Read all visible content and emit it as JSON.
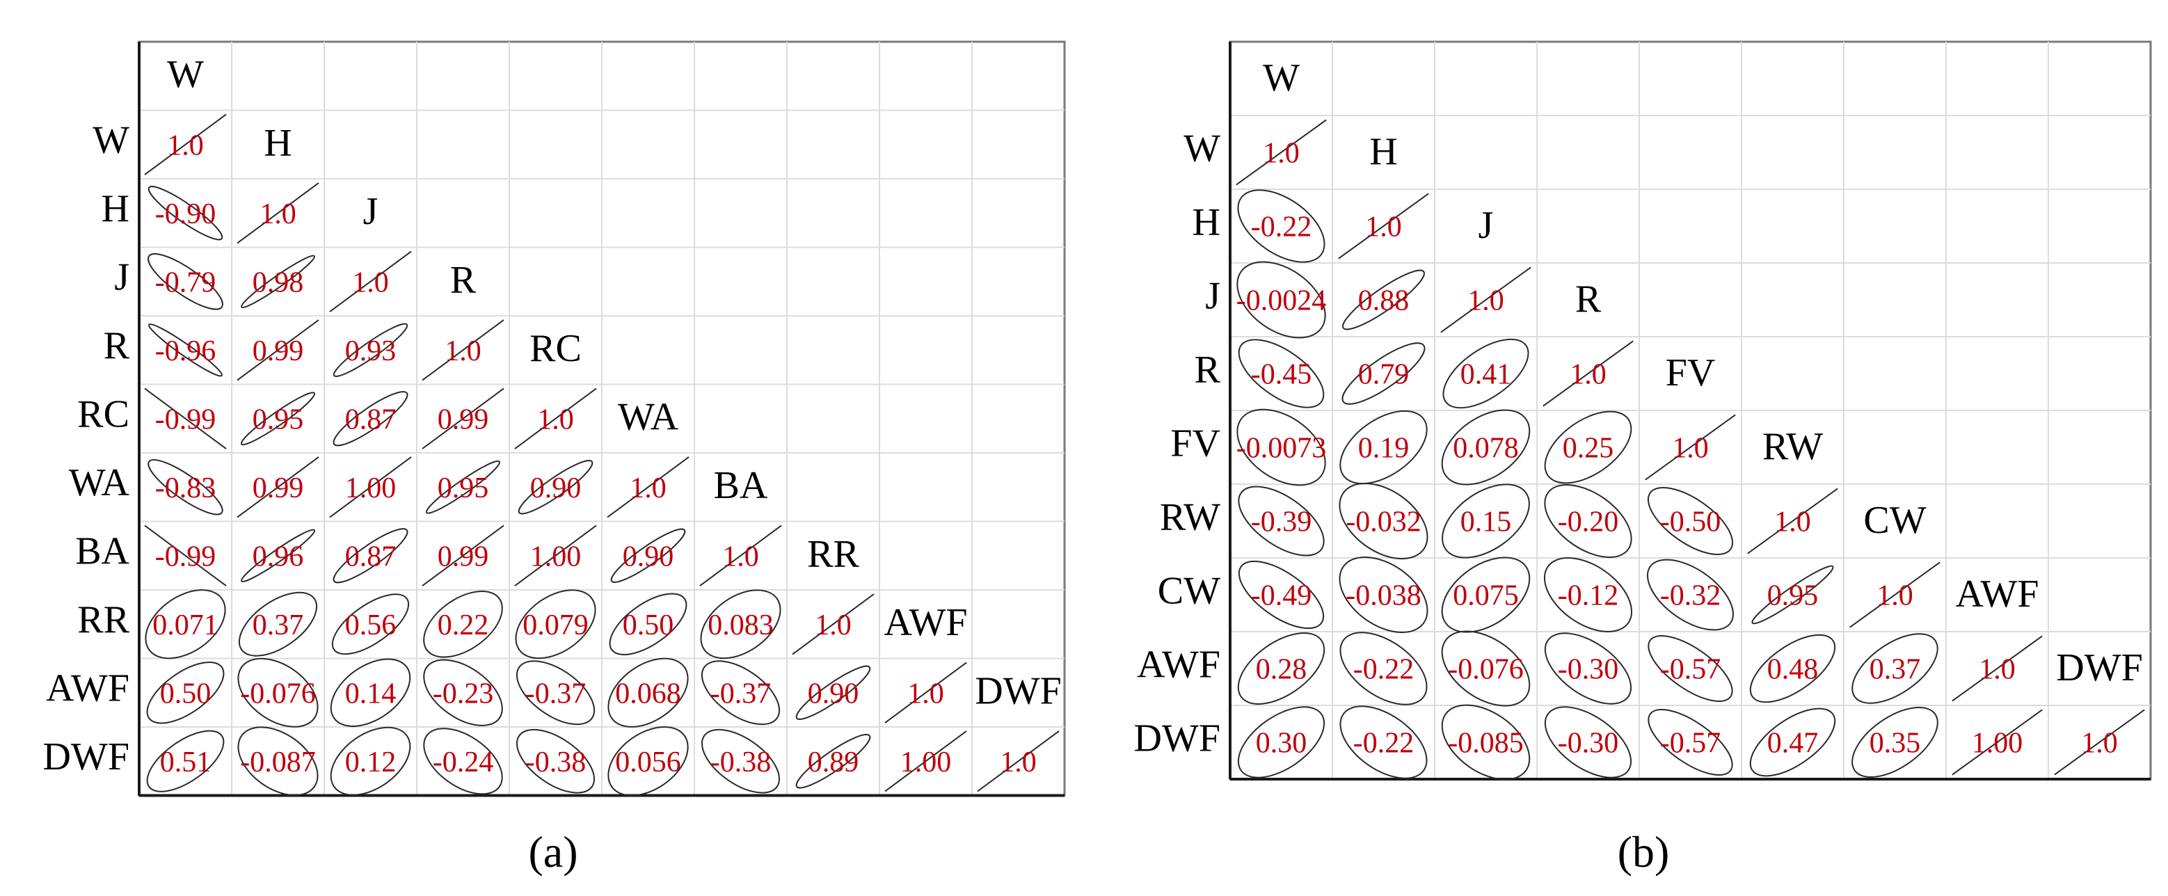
{
  "chart_data": [
    {
      "type": "heatmap",
      "title": "",
      "panel_label": "(a)",
      "variables": [
        "W",
        "H",
        "J",
        "R",
        "RC",
        "WA",
        "BA",
        "RR",
        "AWF",
        "DWF"
      ],
      "lower_triangle_values": [
        [
          "1.0"
        ],
        [
          "-0.90",
          "1.0"
        ],
        [
          "-0.79",
          "0.98",
          "1.0"
        ],
        [
          "-0.96",
          "0.99",
          "0.93",
          "1.0"
        ],
        [
          "-0.99",
          "0.95",
          "0.87",
          "0.99",
          "1.0"
        ],
        [
          "-0.83",
          "0.99",
          "1.00",
          "0.95",
          "0.90",
          "1.0"
        ],
        [
          "-0.99",
          "0.96",
          "0.87",
          "0.99",
          "1.00",
          "0.90",
          "1.0"
        ],
        [
          "0.071",
          "0.37",
          "0.56",
          "0.22",
          "0.079",
          "0.50",
          "0.083",
          "1.0"
        ],
        [
          "0.50",
          "-0.076",
          "0.14",
          "-0.23",
          "-0.37",
          "0.068",
          "-0.37",
          "0.90",
          "1.0"
        ],
        [
          "0.51",
          "-0.087",
          "0.12",
          "-0.24",
          "-0.38",
          "0.056",
          "-0.38",
          "0.89",
          "1.00",
          "1.0"
        ]
      ]
    },
    {
      "type": "heatmap",
      "title": "",
      "panel_label": "(b)",
      "variables": [
        "W",
        "H",
        "J",
        "R",
        "FV",
        "RW",
        "CW",
        "AWF",
        "DWF"
      ],
      "lower_triangle_values": [
        [
          "1.0"
        ],
        [
          "-0.22",
          "1.0"
        ],
        [
          "-0.0024",
          "0.88",
          "1.0"
        ],
        [
          "-0.45",
          "0.79",
          "0.41",
          "1.0"
        ],
        [
          "-0.0073",
          "0.19",
          "0.078",
          "0.25",
          "1.0"
        ],
        [
          "-0.39",
          "-0.032",
          "0.15",
          "-0.20",
          "-0.50",
          "1.0"
        ],
        [
          "-0.49",
          "-0.038",
          "0.075",
          "-0.12",
          "-0.32",
          "0.95",
          "1.0"
        ],
        [
          "0.28",
          "-0.22",
          "-0.076",
          "-0.30",
          "-0.57",
          "0.48",
          "0.37",
          "1.0"
        ],
        [
          "0.30",
          "-0.22",
          "-0.085",
          "-0.30",
          "-0.57",
          "0.47",
          "0.35",
          "1.00",
          "1.0"
        ]
      ]
    }
  ]
}
